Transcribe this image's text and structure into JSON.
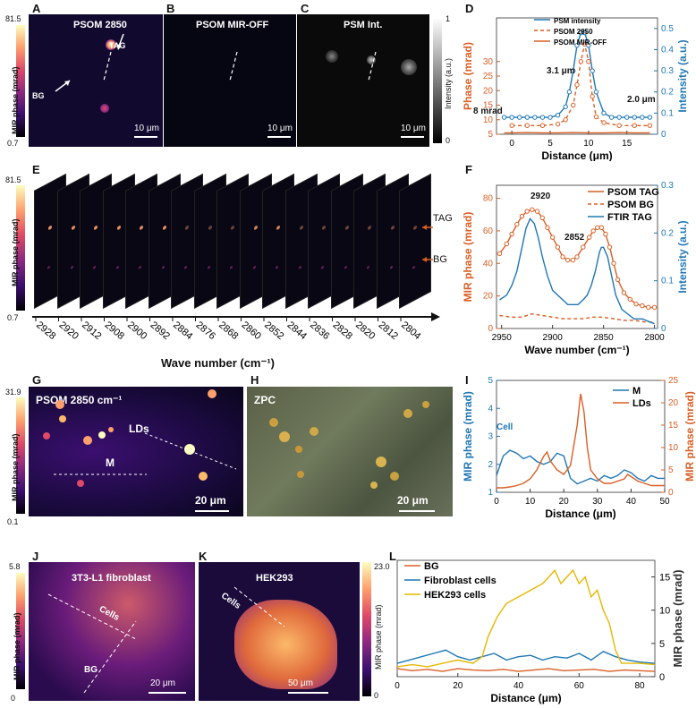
{
  "panels": {
    "A": {
      "letter": "A",
      "title": "PSOM 2850",
      "scale": "10 μm",
      "tag": "TAG",
      "bg": "BG"
    },
    "B": {
      "letter": "B",
      "title": "PSOM MIR-OFF",
      "scale": "10 μm"
    },
    "C": {
      "letter": "C",
      "title": "PSM Int.",
      "scale": "10 μm"
    },
    "D": {
      "letter": "D"
    },
    "E": {
      "letter": "E",
      "xlabel": "Wave number (cm⁻¹)",
      "tag": "TAG",
      "bg": "BG",
      "wavenumbers": [
        "2928",
        "2920",
        "2912",
        "2908",
        "2900",
        "2892",
        "2884",
        "2876",
        "2868",
        "2860",
        "2852",
        "2844",
        "2836",
        "2828",
        "2820",
        "2812",
        "2804"
      ]
    },
    "F": {
      "letter": "F"
    },
    "G": {
      "letter": "G",
      "title": "PSOM 2850 cm⁻¹",
      "lds": "LDs",
      "m": "M",
      "scale": "20 μm"
    },
    "H": {
      "letter": "H",
      "title": "ZPC",
      "scale": "20 μm"
    },
    "I": {
      "letter": "I"
    },
    "J": {
      "letter": "J",
      "title": "3T3-L1 fibroblast",
      "cells": "Cells",
      "bg": "BG",
      "scale": "20 μm"
    },
    "K": {
      "letter": "K",
      "title": "HEK293",
      "cells": "Cells",
      "scale": "50 μm"
    },
    "L": {
      "letter": "L"
    }
  },
  "colorbars": {
    "abc": {
      "label": "MIR phase (mrad)",
      "max": "81.5",
      "min": "0.7"
    },
    "c_int": {
      "label": "Intensity (a.u.)",
      "max": "1",
      "min": "0"
    },
    "e": {
      "label": "MIR phase (mrad)",
      "max": "81.5",
      "min": "0.7"
    },
    "g": {
      "label": "MIR phase (mrad)",
      "max": "31.9",
      "min": "0.1"
    },
    "j": {
      "label": "MIR phase (mrad)",
      "max": "5.8",
      "min": "0"
    },
    "k": {
      "label": "MIR phase (mrad)",
      "max": "23.0",
      "min": "0"
    }
  },
  "chart_data": [
    {
      "id": "D",
      "type": "line",
      "xlabel": "Distance (μm)",
      "ylabel": "Phase (mrad)",
      "y2label": "Intensity (a.u.)",
      "xlim": [
        -2,
        19
      ],
      "ylim": [
        5,
        45
      ],
      "y2lim": [
        0,
        0.55
      ],
      "xticks": [
        "0",
        "5",
        "10",
        "15"
      ],
      "yticks": [
        "5",
        "10",
        "15",
        "20",
        "25",
        "30"
      ],
      "y2ticks": [
        "0",
        "0.1",
        "0.2",
        "0.3",
        "0.4",
        "0.5"
      ],
      "annotations": [
        "3.1 μm",
        "8 mrad",
        "2.0 μm"
      ],
      "series": [
        {
          "name": "PSM intensity",
          "axis": "right",
          "color": "#1f77b4",
          "x": [
            -1,
            0,
            1,
            2,
            3,
            4,
            5,
            6,
            7,
            7.5,
            8,
            8.5,
            9,
            9.5,
            10,
            10.5,
            11,
            12,
            13,
            14,
            15,
            16,
            17,
            18
          ],
          "y": [
            0.08,
            0.08,
            0.08,
            0.08,
            0.08,
            0.08,
            0.08,
            0.09,
            0.13,
            0.2,
            0.3,
            0.42,
            0.48,
            0.48,
            0.42,
            0.3,
            0.2,
            0.1,
            0.08,
            0.08,
            0.08,
            0.08,
            0.08,
            0.08
          ]
        },
        {
          "name": "PSOM 2850",
          "axis": "left",
          "color": "#d95f25",
          "dash": true,
          "x": [
            0,
            2,
            4,
            6,
            7,
            8,
            8.5,
            9,
            9.5,
            10,
            10.5,
            11,
            12,
            14,
            16,
            18
          ],
          "y": [
            8,
            8,
            8,
            8.5,
            10,
            15,
            22,
            30,
            36,
            30,
            18,
            11,
            9,
            8,
            8,
            8
          ]
        },
        {
          "name": "PSOM MIR-OFF",
          "axis": "left",
          "color": "#d95f25",
          "x": [
            -1,
            0,
            2,
            4,
            6,
            8,
            10,
            12,
            14,
            16,
            18
          ],
          "y": [
            5.5,
            5.5,
            5.6,
            5.5,
            5.5,
            5.6,
            5.5,
            5.5,
            5.6,
            5.5,
            5.5
          ]
        }
      ]
    },
    {
      "id": "F",
      "type": "line",
      "xlabel": "Wave number (cm⁻¹)",
      "ylabel": "MIR phase (mrad)",
      "y2label": "Intensity (a.u.)",
      "xlim": [
        2955,
        2797
      ],
      "ylim": [
        0,
        88
      ],
      "y2lim": [
        0,
        0.3
      ],
      "xticks": [
        "2950",
        "2900",
        "2850",
        "2800"
      ],
      "yticks": [
        "0",
        "20",
        "40",
        "60",
        "80"
      ],
      "y2ticks": [
        "0",
        "0.1",
        "0.2",
        "0.3"
      ],
      "annotations": [
        "2920",
        "2852"
      ],
      "series": [
        {
          "name": "PSOM TAG",
          "axis": "left",
          "color": "#d95f25",
          "markers": true,
          "x": [
            2952,
            2945,
            2940,
            2935,
            2930,
            2925,
            2920,
            2915,
            2910,
            2905,
            2900,
            2895,
            2890,
            2885,
            2880,
            2876,
            2870,
            2864,
            2860,
            2856,
            2852,
            2848,
            2844,
            2840,
            2836,
            2830,
            2824,
            2818,
            2812,
            2806,
            2800
          ],
          "y": [
            46,
            52,
            58,
            64,
            69,
            72,
            73,
            72,
            68,
            62,
            56,
            50,
            44,
            42,
            42,
            44,
            50,
            56,
            60,
            62,
            62,
            58,
            50,
            40,
            30,
            22,
            18,
            15,
            14,
            13,
            13
          ]
        },
        {
          "name": "PSOM BG",
          "axis": "left",
          "color": "#d95f25",
          "dash": true,
          "x": [
            2952,
            2940,
            2930,
            2920,
            2910,
            2900,
            2890,
            2880,
            2870,
            2860,
            2852,
            2840,
            2830,
            2820,
            2810,
            2800
          ],
          "y": [
            8,
            7,
            7,
            9,
            8,
            7,
            6,
            6,
            6,
            7,
            7,
            6,
            5,
            5,
            4,
            4
          ]
        },
        {
          "name": "FTIR TAG",
          "axis": "right",
          "color": "#1f77b4",
          "x": [
            2952,
            2945,
            2940,
            2935,
            2930,
            2926,
            2922,
            2918,
            2914,
            2910,
            2905,
            2900,
            2895,
            2890,
            2885,
            2880,
            2875,
            2870,
            2866,
            2862,
            2858,
            2854,
            2852,
            2850,
            2846,
            2842,
            2838,
            2832,
            2826,
            2820,
            2812,
            2800
          ],
          "y": [
            0.06,
            0.07,
            0.09,
            0.12,
            0.17,
            0.21,
            0.23,
            0.22,
            0.19,
            0.15,
            0.11,
            0.08,
            0.07,
            0.06,
            0.05,
            0.05,
            0.05,
            0.06,
            0.07,
            0.09,
            0.12,
            0.16,
            0.17,
            0.17,
            0.15,
            0.11,
            0.07,
            0.04,
            0.03,
            0.02,
            0.02,
            0.01
          ]
        }
      ]
    },
    {
      "id": "I",
      "type": "line",
      "xlabel": "Distance (μm)",
      "ylabel": "MIR phase (mrad)",
      "y2label": "MIR phase (mrad)",
      "xlim": [
        0,
        50
      ],
      "ylim": [
        1,
        5
      ],
      "y2lim": [
        0,
        25
      ],
      "xticks": [
        "0",
        "10",
        "20",
        "30",
        "40",
        "50"
      ],
      "yticks": [
        "1",
        "2",
        "3",
        "4",
        "5"
      ],
      "y2ticks": [
        "0",
        "5",
        "10",
        "15",
        "20",
        "25"
      ],
      "annotations": [
        "Cell"
      ],
      "series": [
        {
          "name": "M",
          "axis": "left",
          "color": "#1f77b4",
          "x": [
            0,
            2,
            4,
            6,
            8,
            10,
            12,
            14,
            16,
            18,
            20,
            22,
            24,
            26,
            28,
            30,
            32,
            34,
            36,
            38,
            40,
            42,
            44,
            46,
            48,
            50
          ],
          "y": [
            1.6,
            2.3,
            2.5,
            2.4,
            2.2,
            2.3,
            2.1,
            2.0,
            2.1,
            2.4,
            2.3,
            1.5,
            1.3,
            1.4,
            1.5,
            1.4,
            1.6,
            1.5,
            1.6,
            1.8,
            1.7,
            1.5,
            1.4,
            1.6,
            1.5,
            1.5
          ]
        },
        {
          "name": "LDs",
          "axis": "right",
          "color": "#d95f25",
          "x": [
            0,
            2,
            4,
            6,
            8,
            10,
            12,
            14,
            15,
            16,
            18,
            20,
            22,
            24,
            25,
            26,
            27,
            28,
            30,
            32,
            34,
            36,
            38,
            39,
            40,
            42,
            44,
            46,
            48,
            50
          ],
          "y": [
            1,
            1,
            1.2,
            1.5,
            2,
            3,
            5,
            8,
            9,
            7,
            5,
            4,
            6,
            15,
            22,
            18,
            10,
            5,
            3,
            2,
            2,
            2.5,
            3,
            4,
            3.5,
            2.5,
            2,
            1.5,
            1.5,
            1.5
          ]
        }
      ]
    },
    {
      "id": "L",
      "type": "line",
      "xlabel": "Distance (μm)",
      "ylabel": "MIR phase (mrad)",
      "xlim": [
        0,
        85
      ],
      "ylim": [
        0,
        17.5
      ],
      "xticks": [
        "0",
        "20",
        "40",
        "60",
        "80"
      ],
      "yticks": [
        "0",
        "5",
        "10",
        "15"
      ],
      "series": [
        {
          "name": "BG",
          "color": "#d95f25",
          "x": [
            0,
            5,
            10,
            15,
            20,
            25,
            30,
            35,
            40,
            45,
            50,
            55,
            60,
            65,
            70,
            75,
            80,
            85
          ],
          "y": [
            1.2,
            0.9,
            1.1,
            0.8,
            1.2,
            1.0,
            0.9,
            1.1,
            0.8,
            1.0,
            1.2,
            0.9,
            1.0,
            1.1,
            0.8,
            1.0,
            0.9,
            0.8
          ]
        },
        {
          "name": "Fibroblast cells",
          "color": "#1f77b4",
          "x": [
            0,
            4,
            8,
            12,
            16,
            20,
            24,
            28,
            32,
            36,
            40,
            44,
            48,
            52,
            56,
            60,
            64,
            68,
            72,
            76,
            80,
            85
          ],
          "y": [
            2,
            2.5,
            3,
            3.5,
            4,
            3,
            2.5,
            3,
            3.5,
            2.5,
            3,
            3.2,
            2.5,
            3,
            2.8,
            3.5,
            2.5,
            3.8,
            3,
            2.5,
            2.2,
            2
          ]
        },
        {
          "name": "HEK293 cells",
          "color": "#e6b800",
          "x": [
            0,
            5,
            10,
            15,
            20,
            25,
            28,
            30,
            33,
            36,
            40,
            44,
            48,
            50,
            52,
            54,
            56,
            58,
            60,
            62,
            64,
            66,
            68,
            70,
            72,
            74,
            76,
            80,
            85
          ],
          "y": [
            1.5,
            1.8,
            1.5,
            2,
            2.5,
            2,
            3,
            6,
            9,
            11,
            12,
            13,
            14,
            15,
            16,
            14,
            15,
            16,
            14,
            15,
            12,
            13,
            10,
            8,
            4,
            2,
            2,
            2,
            1.8
          ]
        }
      ]
    }
  ]
}
